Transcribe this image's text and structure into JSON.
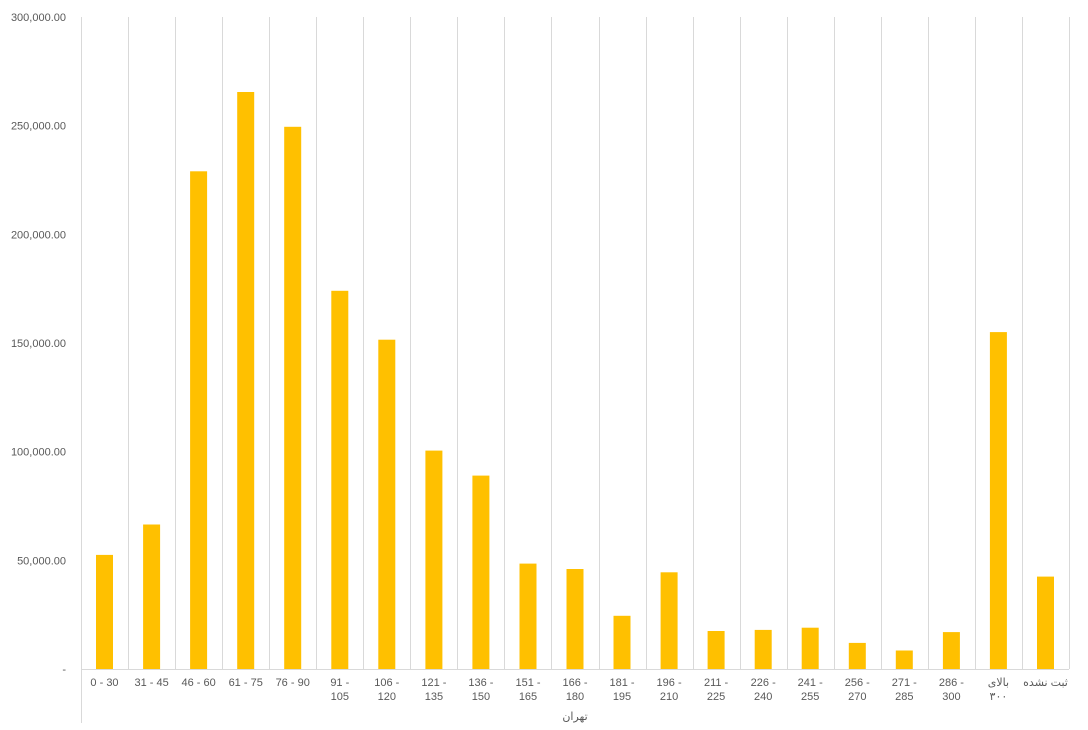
{
  "chart_data": {
    "type": "bar",
    "title": "",
    "xlabel": "",
    "ylabel": "",
    "group_label": "تهران",
    "categories": [
      "0 - 30",
      "31 - 45",
      "46 - 60",
      "61 - 75",
      "76 - 90",
      "91 - 105",
      "106 - 120",
      "121 - 135",
      "136 - 150",
      "151 - 165",
      "166 - 180",
      "181 - 195",
      "196 - 210",
      "211 - 225",
      "226 - 240",
      "241 - 255",
      "256 - 270",
      "271 - 285",
      "286 - 300",
      "بالای ۳۰۰",
      "ثبت نشده"
    ],
    "category_lines": [
      [
        "0 - 30"
      ],
      [
        "31 - 45"
      ],
      [
        "46 - 60"
      ],
      [
        "61 - 75"
      ],
      [
        "76 - 90"
      ],
      [
        "91 -",
        "105"
      ],
      [
        "106 -",
        "120"
      ],
      [
        "121 -",
        "135"
      ],
      [
        "136 -",
        "150"
      ],
      [
        "151 -",
        "165"
      ],
      [
        "166 -",
        "180"
      ],
      [
        "181 -",
        "195"
      ],
      [
        "196 -",
        "210"
      ],
      [
        "211 -",
        "225"
      ],
      [
        "226 -",
        "240"
      ],
      [
        "241 -",
        "255"
      ],
      [
        "256 -",
        "270"
      ],
      [
        "271 -",
        "285"
      ],
      [
        "286 -",
        "300"
      ],
      [
        "بالای",
        "۳۰۰"
      ],
      [
        "ثبت نشده"
      ]
    ],
    "values": [
      52500,
      66500,
      229000,
      265500,
      249500,
      174000,
      151500,
      100500,
      89000,
      48500,
      46000,
      24500,
      44500,
      17500,
      18000,
      19000,
      12000,
      8500,
      17000,
      155000,
      42500
    ],
    "ylim": [
      0,
      300000
    ],
    "yticks": [
      0,
      50000,
      100000,
      150000,
      200000,
      250000,
      300000
    ],
    "ytick_labels": [
      "-",
      "50,000.00",
      "100,000.00",
      "150,000.00",
      "200,000.00",
      "250,000.00",
      "300,000.00"
    ],
    "bar_color": "#FFC000",
    "grid": "vertical",
    "grid_color": "#D9D9D9",
    "legend": "none"
  }
}
